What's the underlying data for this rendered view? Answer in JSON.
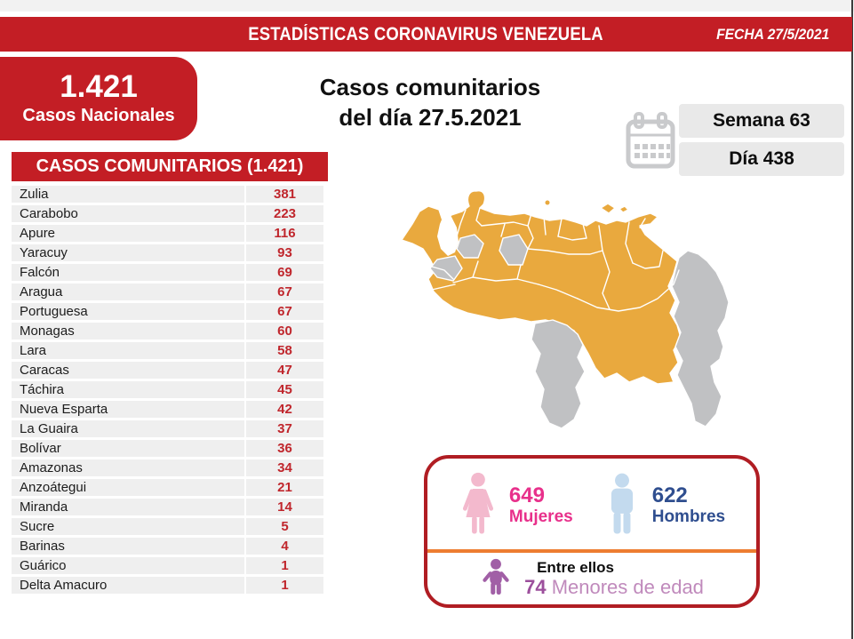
{
  "header": {
    "title": "ESTADÍSTICAS CORONAVIRUS VENEZUELA",
    "date_label": "FECHA 27/5/2021"
  },
  "national": {
    "value": "1.421",
    "label": "Casos Nacionales"
  },
  "main_title": {
    "line1": "Casos comunitarios",
    "line2": "del día 27.5.2021"
  },
  "period": {
    "week": "Semana 63",
    "day": "Día 438"
  },
  "community": {
    "banner": "CASOS COMUNITARIOS (1.421)",
    "rows": [
      [
        "Zulia",
        "381"
      ],
      [
        "Carabobo",
        "223"
      ],
      [
        "Apure",
        "116"
      ],
      [
        "Yaracuy",
        "93"
      ],
      [
        "Falcón",
        "69"
      ],
      [
        "Aragua",
        "67"
      ],
      [
        "Portuguesa",
        "67"
      ],
      [
        "Monagas",
        "60"
      ],
      [
        "Lara",
        "58"
      ],
      [
        "Caracas",
        "47"
      ],
      [
        "Táchira",
        "45"
      ],
      [
        "Nueva Esparta",
        "42"
      ],
      [
        "La Guaira",
        "37"
      ],
      [
        "Bolívar",
        "36"
      ],
      [
        "Amazonas",
        "34"
      ],
      [
        "Anzoátegui",
        "21"
      ],
      [
        "Miranda",
        "14"
      ],
      [
        "Sucre",
        "5"
      ],
      [
        "Barinas",
        "4"
      ],
      [
        "Guárico",
        "1"
      ],
      [
        "Delta Amacuro",
        "1"
      ]
    ]
  },
  "summary": {
    "women_value": "649",
    "women_label": "Mujeres",
    "men_value": "622",
    "men_label": "Hombres",
    "minors_intro": "Entre ellos",
    "minors_value": "74",
    "minors_label": "Menores de edad"
  },
  "icons": {
    "calendar": "calendar-icon",
    "female": "female-icon",
    "male": "male-icon",
    "child": "child-icon"
  },
  "colors": {
    "brand_red": "#c31e25",
    "value_red": "#c0262c",
    "box_border_red": "#b01d23",
    "divider_orange": "#ed7d31",
    "women_pink": "#e8308b",
    "women_icon_pink": "#f3b9cd",
    "men_blue": "#2f4e8f",
    "men_icon_blue": "#c3daee",
    "minors_purple": "#9c4f9c",
    "minors_light_purple": "#c08abc",
    "minors_icon_purple": "#a15fa6",
    "map_active_orange": "#e9a93e",
    "map_inactive_gray": "#c0c1c3",
    "row_gray": "#efefef",
    "pill_gray": "#e9e9e9"
  },
  "chart_data": {
    "type": "table",
    "title": "Casos comunitarios del día 27.5.2021",
    "date": "27/5/2021",
    "total_national_cases": 1421,
    "week": 63,
    "day": 438,
    "categories": [
      "Zulia",
      "Carabobo",
      "Apure",
      "Yaracuy",
      "Falcón",
      "Aragua",
      "Portuguesa",
      "Monagas",
      "Lara",
      "Caracas",
      "Táchira",
      "Nueva Esparta",
      "La Guaira",
      "Bolívar",
      "Amazonas",
      "Anzoátegui",
      "Miranda",
      "Sucre",
      "Barinas",
      "Guárico",
      "Delta Amacuro"
    ],
    "values": [
      381,
      223,
      116,
      93,
      69,
      67,
      67,
      60,
      58,
      47,
      45,
      42,
      37,
      36,
      34,
      21,
      14,
      5,
      4,
      1,
      1
    ],
    "women": 649,
    "men": 622,
    "minors": 74
  }
}
